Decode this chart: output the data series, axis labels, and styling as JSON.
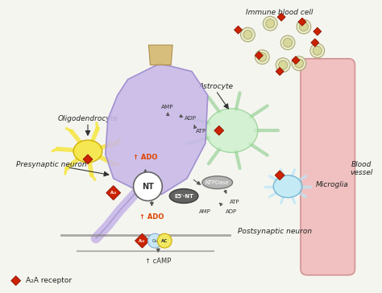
{
  "labels": {
    "oligodendrocyte": "Oligodendrocyte",
    "astrocyte": "Astrocyte",
    "presynaptic": "Presynaptic neuron",
    "postsynaptic": "Postsynaptic neuron",
    "blood_vessel": "Blood\nvessel",
    "microglia": "Microglia",
    "immune": "Immune blood cell",
    "nt": "NT",
    "amp1": "AMP",
    "adp1": "ADP",
    "atp1": "ATP",
    "ado1": "↑ ADO",
    "ado2": "↑ ADO",
    "camp": "↑ cAMP",
    "ntpdase": "NTPDase",
    "e5nt": "E5′-NT",
    "amp2": "AMP",
    "adp2": "ADP",
    "atp2": "ATP",
    "a2a_legend": "A₂A receptor"
  },
  "colors": {
    "bg_color": "#f5f5f0",
    "presynaptic_neuron_body": "#c8b8e8",
    "oligodendrocyte": "#f5e642",
    "astrocyte": "#c8f0c8",
    "blood_vessel": "#f0b8b8",
    "microglia": "#b8e8f8",
    "a2a_receptor": "#cc2200",
    "nt_circle": "#ffffff",
    "e5nt_ellipse": "#555555",
    "ntpdase_ellipse": "#aaaaaa",
    "ac_circle": "#f0e860",
    "gs_circle": "#c8e8f8",
    "immune_cell": "#e8e8c0",
    "arrow": "#333333",
    "ado_color": "#dd4400",
    "text_color": "#222222",
    "line_color": "#555555"
  }
}
